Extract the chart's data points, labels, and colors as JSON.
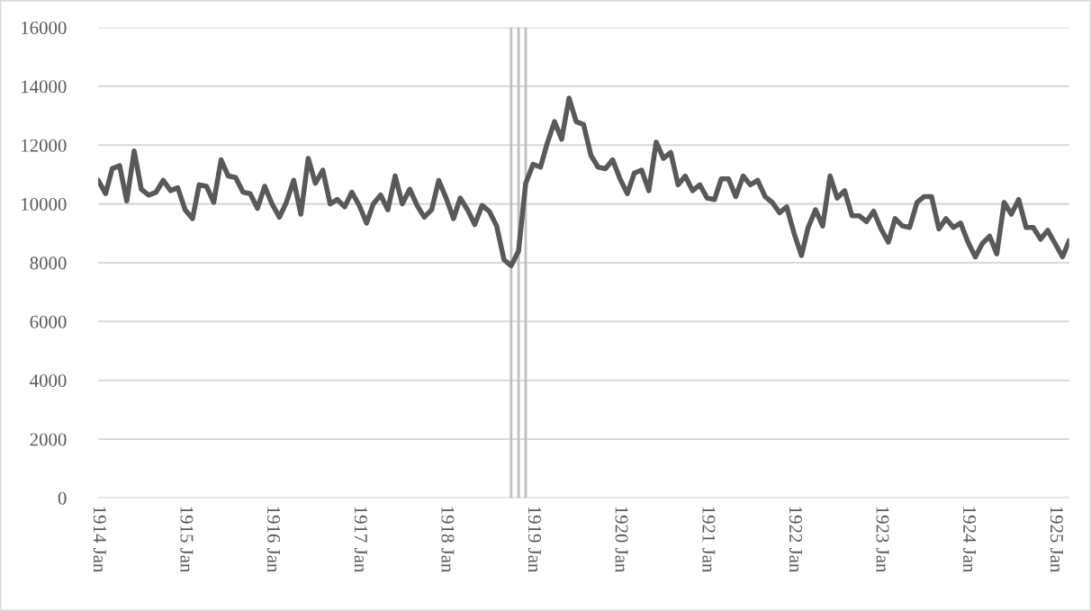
{
  "chart_data": {
    "type": "line",
    "x": [
      "1914-01",
      "1914-02",
      "1914-03",
      "1914-04",
      "1914-05",
      "1914-06",
      "1914-07",
      "1914-08",
      "1914-09",
      "1914-10",
      "1914-11",
      "1914-12",
      "1915-01",
      "1915-02",
      "1915-03",
      "1915-04",
      "1915-05",
      "1915-06",
      "1915-07",
      "1915-08",
      "1915-09",
      "1915-10",
      "1915-11",
      "1915-12",
      "1916-01",
      "1916-02",
      "1916-03",
      "1916-04",
      "1916-05",
      "1916-06",
      "1916-07",
      "1916-08",
      "1916-09",
      "1916-10",
      "1916-11",
      "1916-12",
      "1917-01",
      "1917-02",
      "1917-03",
      "1917-04",
      "1917-05",
      "1917-06",
      "1917-07",
      "1917-08",
      "1917-09",
      "1917-10",
      "1917-11",
      "1917-12",
      "1918-01",
      "1918-02",
      "1918-03",
      "1918-04",
      "1918-05",
      "1918-06",
      "1918-07",
      "1918-08",
      "1918-09",
      "1918-10",
      "1918-11",
      "1918-12",
      "1919-01",
      "1919-02",
      "1919-03",
      "1919-04",
      "1919-05",
      "1919-06",
      "1919-07",
      "1919-08",
      "1919-09",
      "1919-10",
      "1919-11",
      "1919-12",
      "1920-01",
      "1920-02",
      "1920-03",
      "1920-04",
      "1920-05",
      "1920-06",
      "1920-07",
      "1920-08",
      "1920-09",
      "1920-10",
      "1920-11",
      "1920-12",
      "1921-01",
      "1921-02",
      "1921-03",
      "1921-04",
      "1921-05",
      "1921-06",
      "1921-07",
      "1921-08",
      "1921-09",
      "1921-10",
      "1921-11",
      "1921-12",
      "1922-01",
      "1922-02",
      "1922-03",
      "1922-04",
      "1922-05",
      "1922-06",
      "1922-07",
      "1922-08",
      "1922-09",
      "1922-10",
      "1922-11",
      "1922-12",
      "1923-01",
      "1923-02",
      "1923-03",
      "1923-04",
      "1923-05",
      "1923-06",
      "1923-07",
      "1923-08",
      "1923-09",
      "1923-10",
      "1923-11",
      "1923-12",
      "1924-01",
      "1924-02",
      "1924-03",
      "1924-04",
      "1924-05",
      "1924-06",
      "1924-07",
      "1924-08",
      "1924-09",
      "1924-10",
      "1924-11",
      "1924-12",
      "1925-01",
      "1925-02",
      "1925-03"
    ],
    "series": [
      {
        "color": "#595959",
        "values": [
          10800,
          10350,
          11200,
          11300,
          10100,
          11800,
          10500,
          10300,
          10400,
          10800,
          10450,
          10550,
          9800,
          9500,
          10650,
          10600,
          10050,
          11500,
          10950,
          10900,
          10400,
          10350,
          9850,
          10600,
          10000,
          9550,
          10050,
          10800,
          9650,
          11550,
          10700,
          11150,
          10000,
          10150,
          9900,
          10400,
          9950,
          9350,
          10000,
          10300,
          9800,
          10950,
          10000,
          10500,
          9950,
          9550,
          9800,
          10800,
          10200,
          9500,
          10200,
          9800,
          9300,
          9950,
          9750,
          9250,
          8100,
          7900,
          8400,
          10700,
          11350,
          11250,
          12050,
          12800,
          12200,
          13600,
          12800,
          12700,
          11650,
          11250,
          11200,
          11500,
          10850,
          10350,
          11050,
          11150,
          10450,
          12100,
          11550,
          11750,
          10650,
          10950,
          10450,
          10650,
          10200,
          10150,
          10850,
          10850,
          10250,
          10950,
          10650,
          10800,
          10250,
          10050,
          9700,
          9900,
          9000,
          8250,
          9200,
          9800,
          9250,
          10950,
          10200,
          10450,
          9600,
          9600,
          9400,
          9750,
          9150,
          8700,
          9500,
          9250,
          9200,
          10050,
          10250,
          10250,
          9150,
          9500,
          9200,
          9350,
          8700,
          8200,
          8650,
          8900,
          8300,
          10050,
          9650,
          10150,
          9200,
          9200,
          8800,
          9100,
          8650,
          8200,
          8750
        ]
      }
    ],
    "xlim": [
      "1914-01",
      "1925-03"
    ],
    "xticks": [
      {
        "value": "1914-01",
        "label": "1914 Jan"
      },
      {
        "value": "1915-01",
        "label": "1915 Jan"
      },
      {
        "value": "1916-01",
        "label": "1916 Jan"
      },
      {
        "value": "1917-01",
        "label": "1917 Jan"
      },
      {
        "value": "1918-01",
        "label": "1918 Jan"
      },
      {
        "value": "1919-01",
        "label": "1919 Jan"
      },
      {
        "value": "1920-01",
        "label": "1920 Jan"
      },
      {
        "value": "1921-01",
        "label": "1921 Jan"
      },
      {
        "value": "1922-01",
        "label": "1922 Jan"
      },
      {
        "value": "1923-01",
        "label": "1923 Jan"
      },
      {
        "value": "1924-01",
        "label": "1924 Jan"
      },
      {
        "value": "1925-01",
        "label": "1925 Jan"
      }
    ],
    "ylim": [
      0,
      16000
    ],
    "yticks": [
      0,
      2000,
      4000,
      6000,
      8000,
      10000,
      12000,
      14000,
      16000
    ],
    "grid": "y",
    "line_style": "solid",
    "ref_lines": [
      {
        "axis": "x",
        "value": "1918-10",
        "color": "#bfbfbf"
      },
      {
        "axis": "x",
        "value": "1918-11",
        "color": "#bfbfbf"
      },
      {
        "axis": "x",
        "value": "1918-12",
        "color": "#bfbfbf"
      }
    ]
  }
}
